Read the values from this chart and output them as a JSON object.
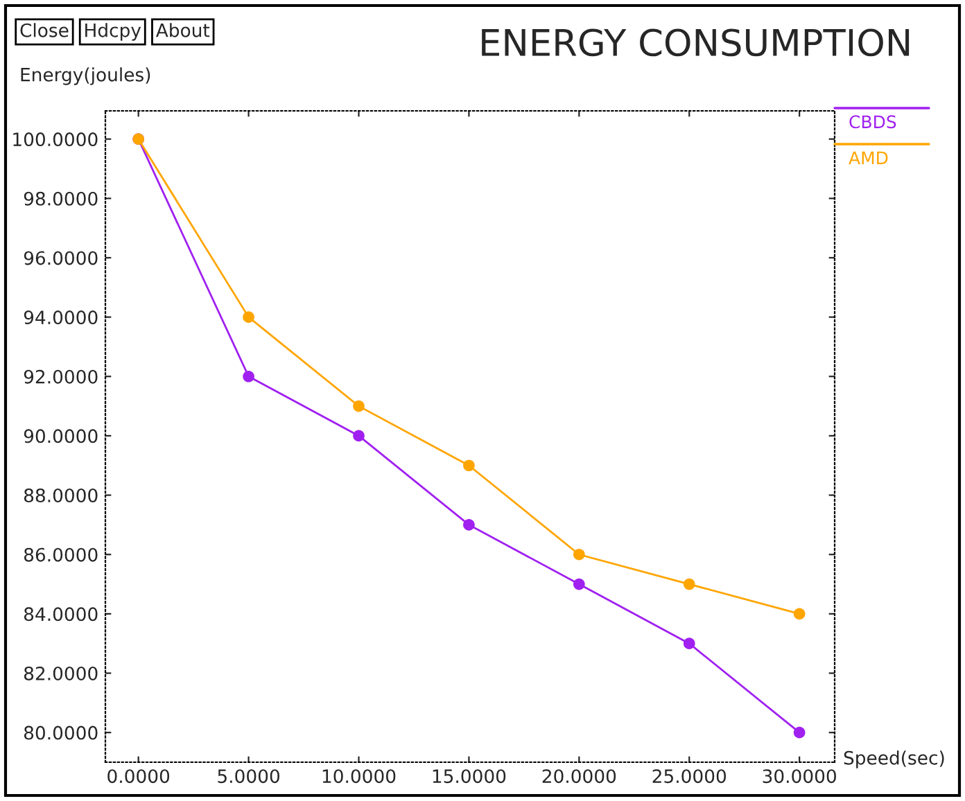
{
  "chart_data": {
    "type": "line",
    "title": "ENERGY CONSUMPTION",
    "xlabel": "Speed(sec)",
    "ylabel": "Energy(joules)",
    "annotations": [
      "Close",
      "Hdcpy",
      "About"
    ],
    "x": [
      0,
      5,
      10,
      15,
      20,
      25,
      30
    ],
    "series": [
      {
        "name": "CBDS",
        "color": "#a020f0",
        "values": [
          100,
          92,
          90,
          87,
          85,
          83,
          80
        ]
      },
      {
        "name": "AMD",
        "color": "#ffa500",
        "values": [
          100,
          94,
          91,
          89,
          86,
          85,
          84
        ]
      }
    ],
    "xlim": [
      -1.5,
      31.6
    ],
    "ylim": [
      79.0,
      100.95
    ],
    "xticks": [
      {
        "value": 0,
        "label": "0.0000"
      },
      {
        "value": 5,
        "label": "5.0000"
      },
      {
        "value": 10,
        "label": "10.0000"
      },
      {
        "value": 15,
        "label": "15.0000"
      },
      {
        "value": 20,
        "label": "20.0000"
      },
      {
        "value": 25,
        "label": "25.0000"
      },
      {
        "value": 30,
        "label": "30.0000"
      }
    ],
    "yticks": [
      {
        "value": 80,
        "label": "80.0000"
      },
      {
        "value": 82,
        "label": "82.0000"
      },
      {
        "value": 84,
        "label": "84.0000"
      },
      {
        "value": 86,
        "label": "86.0000"
      },
      {
        "value": 88,
        "label": "88.0000"
      },
      {
        "value": 90,
        "label": "90.0000"
      },
      {
        "value": 92,
        "label": "92.0000"
      },
      {
        "value": 94,
        "label": "94.0000"
      },
      {
        "value": 96,
        "label": "96.0000"
      },
      {
        "value": 98,
        "label": "98.0000"
      },
      {
        "value": 100,
        "label": "100.0000"
      }
    ],
    "grid": false,
    "legend": "right",
    "marker": "circle",
    "line_style": "solid"
  }
}
